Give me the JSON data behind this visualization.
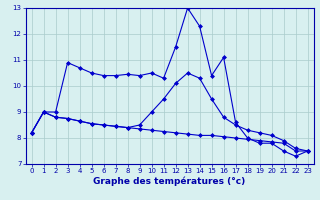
{
  "xlabel": "Graphe des températures (°c)",
  "x": [
    0,
    1,
    2,
    3,
    4,
    5,
    6,
    7,
    8,
    9,
    10,
    11,
    12,
    13,
    14,
    15,
    16,
    17,
    18,
    19,
    20,
    21,
    22,
    23
  ],
  "line1": [
    8.2,
    9.0,
    9.0,
    10.9,
    10.7,
    10.5,
    10.4,
    10.4,
    10.45,
    10.4,
    10.5,
    10.3,
    11.5,
    13.0,
    12.3,
    10.4,
    11.1,
    8.6,
    8.0,
    7.8,
    7.8,
    7.5,
    7.3,
    7.5
  ],
  "line2": [
    8.2,
    9.0,
    8.8,
    8.75,
    8.65,
    8.55,
    8.5,
    8.45,
    8.4,
    8.5,
    9.0,
    9.5,
    10.1,
    10.5,
    10.3,
    9.5,
    8.8,
    8.5,
    8.3,
    8.2,
    8.1,
    7.9,
    7.6,
    7.5
  ],
  "line3": [
    8.2,
    9.0,
    8.8,
    8.75,
    8.65,
    8.55,
    8.5,
    8.45,
    8.4,
    8.35,
    8.3,
    8.25,
    8.2,
    8.15,
    8.1,
    8.1,
    8.05,
    8.0,
    7.95,
    7.9,
    7.85,
    7.8,
    7.5,
    7.5
  ],
  "line_color": "#0000cc",
  "marker": "D",
  "marker_size": 2.0,
  "bg_color": "#d8f0f0",
  "grid_color": "#aacccc",
  "ylim": [
    7,
    13
  ],
  "xlim": [
    -0.5,
    23.5
  ],
  "yticks": [
    7,
    8,
    9,
    10,
    11,
    12,
    13
  ],
  "xticks": [
    0,
    1,
    2,
    3,
    4,
    5,
    6,
    7,
    8,
    9,
    10,
    11,
    12,
    13,
    14,
    15,
    16,
    17,
    18,
    19,
    20,
    21,
    22,
    23
  ],
  "tick_fontsize": 5.0,
  "xlabel_fontsize": 6.5,
  "axis_color": "#0000aa",
  "line_width": 0.8
}
